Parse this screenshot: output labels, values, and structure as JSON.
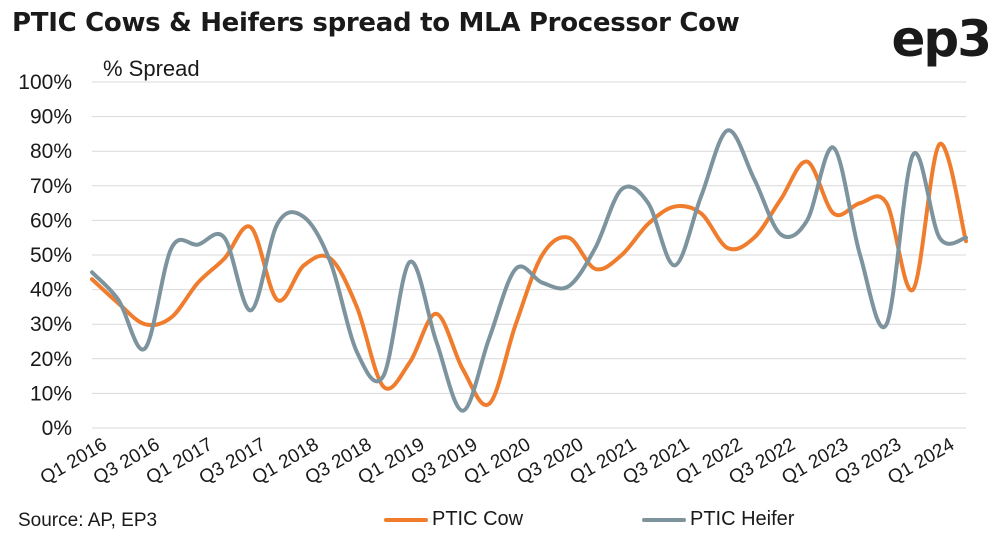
{
  "chart_data": {
    "type": "line",
    "title": "PTIC Cows & Heifers spread to MLA Processor Cow",
    "ylabel": "% Spread",
    "ylim": [
      0,
      100
    ],
    "y_ticks": [
      "0%",
      "10%",
      "20%",
      "30%",
      "40%",
      "50%",
      "60%",
      "70%",
      "80%",
      "90%",
      "100%"
    ],
    "x_ticks": [
      "Q1 2016",
      "Q3 2016",
      "Q1 2017",
      "Q3 2017",
      "Q1 2018",
      "Q3 2018",
      "Q1 2019",
      "Q3 2019",
      "Q1 2020",
      "Q3 2020",
      "Q1 2021",
      "Q3 2021",
      "Q1 2022",
      "Q3 2022",
      "Q1 2023",
      "Q3 2023",
      "Q1 2024"
    ],
    "grid": true,
    "legend_position": "bottom",
    "series": [
      {
        "name": "PTIC Cow",
        "color": "#ef7d2d",
        "x": [
          0,
          1,
          2,
          3,
          4,
          5,
          6,
          7,
          8,
          9,
          10,
          11,
          12,
          13,
          14,
          15,
          16,
          17,
          18,
          19,
          20,
          21,
          22,
          23,
          24,
          25,
          26,
          27,
          28,
          29,
          30,
          31,
          32,
          33
        ],
        "values": [
          43,
          36,
          30,
          32,
          42,
          49,
          58,
          37,
          47,
          49,
          35,
          12,
          19,
          33,
          17,
          7,
          30,
          50,
          55,
          46,
          50,
          59,
          64,
          62,
          52,
          55,
          66,
          77,
          62,
          65,
          65,
          40,
          82,
          54
        ]
      },
      {
        "name": "PTIC Heifer",
        "color": "#7d949e",
        "x": [
          0,
          1,
          2,
          3,
          4,
          5,
          6,
          7,
          8,
          9,
          10,
          11,
          12,
          13,
          14,
          15,
          16,
          17,
          18,
          19,
          20,
          21,
          22,
          23,
          24,
          25,
          26,
          27,
          28,
          29,
          30,
          31,
          32,
          33
        ],
        "values": [
          45,
          37,
          23,
          52,
          53,
          55,
          34,
          59,
          61,
          48,
          22,
          15,
          48,
          25,
          5,
          26,
          46,
          42,
          41,
          52,
          69,
          65,
          47,
          67,
          86,
          72,
          56,
          60,
          81,
          50,
          30,
          79,
          55,
          55
        ]
      }
    ]
  },
  "header": {
    "title": "PTIC Cows & Heifers spread to MLA Processor Cow",
    "logo_text": "ep3",
    "y_axis_label": "% Spread"
  },
  "footer": {
    "source": "Source: AP, EP3",
    "legend_cow": "PTIC Cow",
    "legend_heifer": "PTIC Heifer"
  }
}
